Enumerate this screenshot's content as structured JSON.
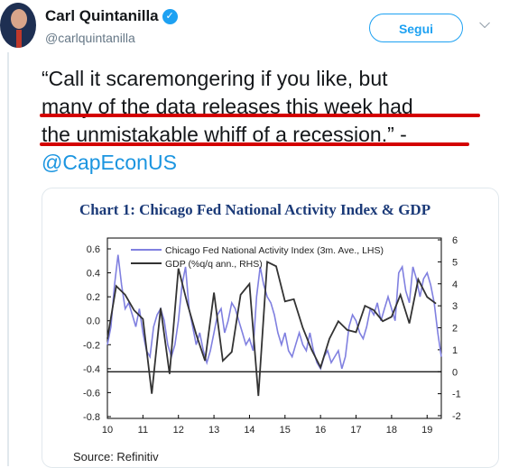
{
  "tweet": {
    "author_name": "Carl Quintanilla",
    "handle": "@carlquintanilla",
    "follow_label": "Segui",
    "text_line1": "“Call it scaremongering if you like, but",
    "text_line2": "many of the data releases this week had",
    "text_line3": "the unmistakable whiff of a recession.” -",
    "mention": "@CapEconUS"
  },
  "icons": {
    "verified": "verified-badge-icon",
    "caret": "chevron-down-icon"
  },
  "colors": {
    "accent": "#1da1f2",
    "underline": "#d40000",
    "chart_title": "#1b3a78",
    "series_activity": "#8080e0",
    "series_gdp": "#333333"
  },
  "chart_data": {
    "type": "line",
    "title": "Chart 1: Chicago Fed National Activity Index & GDP",
    "source": "Source: Refinitiv",
    "x_ticks": [
      "10",
      "11",
      "12",
      "13",
      "14",
      "15",
      "16",
      "17",
      "18",
      "19"
    ],
    "y_left_ticks": [
      "0.6",
      "0.4",
      "0.2",
      "0.0",
      "-0.2",
      "-0.4",
      "-0.6",
      "-0.8"
    ],
    "y_right_ticks": [
      "6",
      "5",
      "4",
      "3",
      "2",
      "1",
      "0",
      "-1",
      "-2"
    ],
    "ylim_left": [
      -0.8,
      0.7
    ],
    "ylim_right": [
      -2,
      6
    ],
    "xlim": [
      10,
      19.4
    ],
    "legend_placement": "top-center",
    "series": [
      {
        "name": "Chicago Fed National Activity Index (3m. Ave., LHS)",
        "axis": "left",
        "points": [
          [
            10.0,
            -0.2
          ],
          [
            10.1,
            -0.05
          ],
          [
            10.2,
            0.3
          ],
          [
            10.3,
            0.55
          ],
          [
            10.4,
            0.3
          ],
          [
            10.5,
            0.1
          ],
          [
            10.6,
            0.15
          ],
          [
            10.7,
            0.05
          ],
          [
            10.8,
            -0.05
          ],
          [
            10.9,
            0.1
          ],
          [
            11.0,
            -0.1
          ],
          [
            11.1,
            -0.25
          ],
          [
            11.2,
            -0.3
          ],
          [
            11.3,
            -0.05
          ],
          [
            11.4,
            0.05
          ],
          [
            11.5,
            0.1
          ],
          [
            11.6,
            0.0
          ],
          [
            11.7,
            -0.2
          ],
          [
            11.8,
            -0.3
          ],
          [
            11.9,
            -0.2
          ],
          [
            12.0,
            0.0
          ],
          [
            12.1,
            0.3
          ],
          [
            12.2,
            0.45
          ],
          [
            12.3,
            0.1
          ],
          [
            12.4,
            -0.05
          ],
          [
            12.5,
            -0.2
          ],
          [
            12.6,
            -0.1
          ],
          [
            12.7,
            -0.25
          ],
          [
            12.8,
            -0.35
          ],
          [
            12.9,
            -0.25
          ],
          [
            13.0,
            -0.1
          ],
          [
            13.1,
            0.05
          ],
          [
            13.2,
            0.1
          ],
          [
            13.3,
            -0.1
          ],
          [
            13.4,
            0.0
          ],
          [
            13.5,
            0.15
          ],
          [
            13.6,
            0.1
          ],
          [
            13.7,
            0.0
          ],
          [
            13.8,
            -0.1
          ],
          [
            13.9,
            -0.2
          ],
          [
            14.0,
            -0.15
          ],
          [
            14.1,
            -0.25
          ],
          [
            14.2,
            0.2
          ],
          [
            14.3,
            0.45
          ],
          [
            14.4,
            0.3
          ],
          [
            14.5,
            0.2
          ],
          [
            14.6,
            0.15
          ],
          [
            14.7,
            0.05
          ],
          [
            14.8,
            -0.1
          ],
          [
            14.9,
            -0.2
          ],
          [
            15.0,
            -0.1
          ],
          [
            15.1,
            -0.25
          ],
          [
            15.2,
            -0.3
          ],
          [
            15.3,
            -0.2
          ],
          [
            15.4,
            -0.1
          ],
          [
            15.5,
            -0.2
          ],
          [
            15.6,
            -0.25
          ],
          [
            15.7,
            -0.1
          ],
          [
            15.8,
            -0.25
          ],
          [
            15.9,
            -0.35
          ],
          [
            16.0,
            -0.4
          ],
          [
            16.1,
            -0.3
          ],
          [
            16.2,
            -0.25
          ],
          [
            16.3,
            -0.35
          ],
          [
            16.4,
            -0.3
          ],
          [
            16.5,
            -0.25
          ],
          [
            16.6,
            -0.4
          ],
          [
            16.7,
            -0.3
          ],
          [
            16.8,
            -0.05
          ],
          [
            16.9,
            0.05
          ],
          [
            17.0,
            0.0
          ],
          [
            17.1,
            -0.1
          ],
          [
            17.2,
            -0.15
          ],
          [
            17.3,
            -0.05
          ],
          [
            17.4,
            0.1
          ],
          [
            17.5,
            0.05
          ],
          [
            17.6,
            0.15
          ],
          [
            17.7,
            0.0
          ],
          [
            17.8,
            0.1
          ],
          [
            17.9,
            0.2
          ],
          [
            18.0,
            0.1
          ],
          [
            18.1,
            0.0
          ],
          [
            18.2,
            0.4
          ],
          [
            18.3,
            0.45
          ],
          [
            18.4,
            0.25
          ],
          [
            18.5,
            0.15
          ],
          [
            18.6,
            0.45
          ],
          [
            18.7,
            0.35
          ],
          [
            18.8,
            0.2
          ],
          [
            18.9,
            0.35
          ],
          [
            19.0,
            0.4
          ],
          [
            19.1,
            0.3
          ],
          [
            19.2,
            0.15
          ],
          [
            19.3,
            -0.1
          ],
          [
            19.4,
            -0.3
          ]
        ]
      },
      {
        "name": "GDP (%q/q ann., RHS)",
        "axis": "right",
        "points": [
          [
            10.0,
            1.5
          ],
          [
            10.25,
            3.9
          ],
          [
            10.5,
            3.5
          ],
          [
            10.75,
            2.8
          ],
          [
            11.0,
            2.4
          ],
          [
            11.25,
            -1.0
          ],
          [
            11.5,
            2.9
          ],
          [
            11.75,
            -0.1
          ],
          [
            12.0,
            4.7
          ],
          [
            12.25,
            3.1
          ],
          [
            12.5,
            1.7
          ],
          [
            12.75,
            0.5
          ],
          [
            13.0,
            3.6
          ],
          [
            13.25,
            0.5
          ],
          [
            13.5,
            0.9
          ],
          [
            13.75,
            3.5
          ],
          [
            14.0,
            4.0
          ],
          [
            14.25,
            -1.1
          ],
          [
            14.5,
            5.0
          ],
          [
            14.75,
            4.8
          ],
          [
            15.0,
            3.2
          ],
          [
            15.25,
            3.3
          ],
          [
            15.5,
            2.0
          ],
          [
            15.75,
            1.0
          ],
          [
            16.0,
            0.2
          ],
          [
            16.25,
            1.5
          ],
          [
            16.5,
            2.3
          ],
          [
            16.75,
            1.9
          ],
          [
            17.0,
            1.8
          ],
          [
            17.25,
            3.0
          ],
          [
            17.5,
            2.8
          ],
          [
            17.75,
            2.3
          ],
          [
            18.0,
            2.5
          ],
          [
            18.25,
            3.5
          ],
          [
            18.5,
            2.2
          ],
          [
            18.75,
            4.2
          ],
          [
            19.0,
            3.4
          ],
          [
            19.25,
            3.1
          ]
        ]
      }
    ]
  }
}
